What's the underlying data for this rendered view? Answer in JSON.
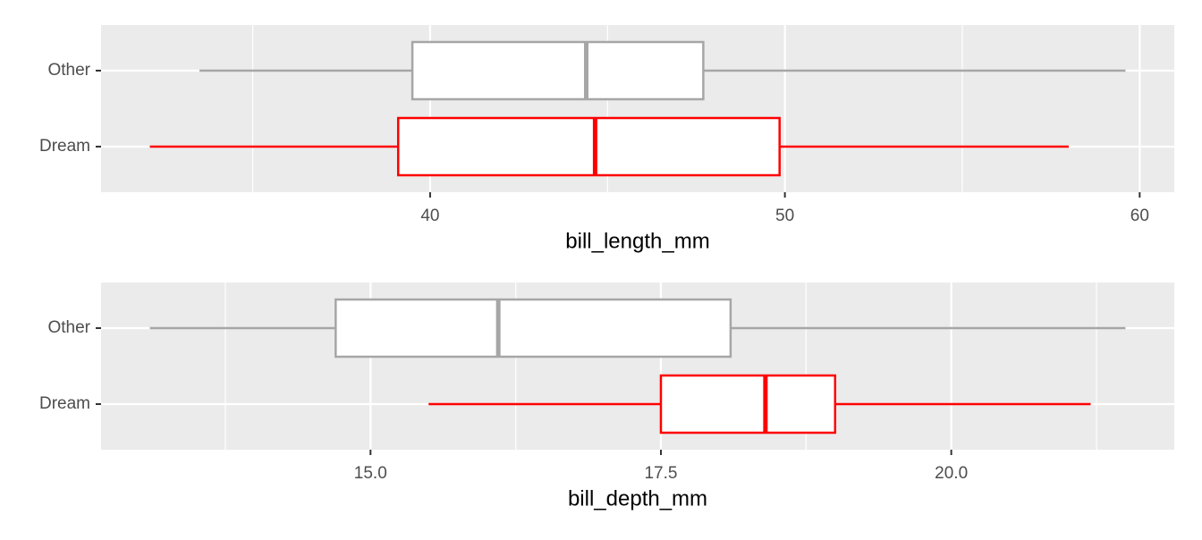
{
  "chart_data": [
    {
      "type": "boxplot",
      "xlabel": "bill_length_mm",
      "xlim": [
        30.725,
        60.975
      ],
      "xticks": [
        40,
        50,
        60
      ],
      "xminor": [
        35,
        45,
        55
      ],
      "grid": true,
      "boxes": [
        {
          "category": "Other",
          "color": "#a6a6a6",
          "whisker_low": 33.5,
          "q1": 39.5,
          "median": 44.4,
          "q3": 47.7,
          "whisker_high": 59.6
        },
        {
          "category": "Dream",
          "color": "#ff0000",
          "whisker_low": 32.1,
          "q1": 39.1,
          "median": 44.65,
          "q3": 49.85,
          "whisker_high": 58.0
        }
      ]
    },
    {
      "type": "boxplot",
      "xlabel": "bill_depth_mm",
      "xlim": [
        12.68,
        21.92
      ],
      "xticks": [
        {
          "value": 15,
          "label": "15.0"
        },
        17.5,
        {
          "value": 20,
          "label": "20.0"
        }
      ],
      "xminor": [
        13.75,
        16.25,
        18.75,
        21.25
      ],
      "grid": true,
      "boxes": [
        {
          "category": "Other",
          "color": "#a6a6a6",
          "whisker_low": 13.1,
          "q1": 14.7,
          "median": 16.1,
          "q3": 18.1,
          "whisker_high": 21.5
        },
        {
          "category": "Dream",
          "color": "#ff0000",
          "whisker_low": 15.5,
          "q1": 17.5,
          "median": 18.4,
          "q3": 19.0,
          "whisker_high": 21.2
        }
      ]
    }
  ]
}
